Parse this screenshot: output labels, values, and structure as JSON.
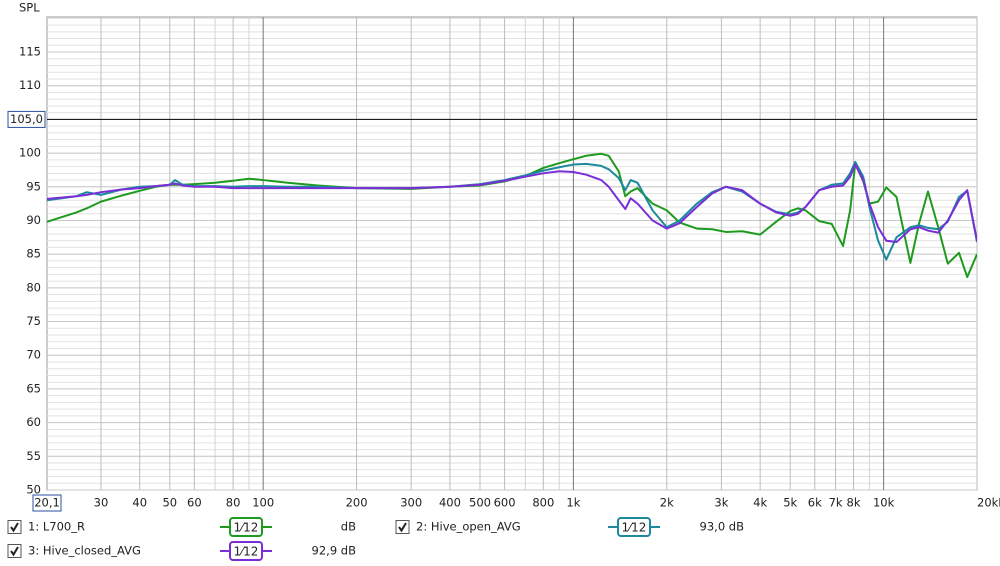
{
  "chart_data": {
    "type": "line",
    "y_label": "SPL",
    "x_scale": "log",
    "grid": true,
    "xlim": [
      20.1,
      20000
    ],
    "ylim": [
      50,
      120.2
    ],
    "x_cursor": {
      "value": 20.1,
      "label": "20,1"
    },
    "y_cursor": {
      "value": 105,
      "label": "105,0"
    },
    "xticks": [
      30,
      40,
      50,
      60,
      80,
      100,
      200,
      300,
      400,
      500,
      600,
      800,
      {
        "value": 1000,
        "label": "1k"
      },
      {
        "value": 2000,
        "label": "2k"
      },
      {
        "value": 3000,
        "label": "3k"
      },
      {
        "value": 4000,
        "label": "4k"
      },
      {
        "value": 5000,
        "label": "5k"
      },
      {
        "value": 6000,
        "label": "6k"
      },
      {
        "value": 7000,
        "label": "7k"
      },
      {
        "value": 8000,
        "label": "8k"
      },
      {
        "value": 10000,
        "label": "10k"
      },
      {
        "value": 20000,
        "label": "20kHz"
      }
    ],
    "yticks": [
      50,
      55,
      60,
      65,
      70,
      75,
      80,
      85,
      90,
      95,
      100,
      110,
      115
    ],
    "x": [
      20.1,
      25,
      27,
      30,
      35,
      40,
      45,
      50,
      52,
      55,
      60,
      70,
      80,
      90,
      100,
      120,
      150,
      200,
      300,
      400,
      500,
      600,
      700,
      800,
      900,
      1000,
      1100,
      1230,
      1300,
      1400,
      1470,
      1530,
      1610,
      1800,
      2000,
      2200,
      2500,
      2800,
      3100,
      3500,
      4000,
      4500,
      5000,
      5300,
      5600,
      6200,
      6800,
      7400,
      7800,
      8100,
      8600,
      9000,
      9600,
      10200,
      11000,
      12200,
      13000,
      13900,
      15000,
      16100,
      17500,
      18600,
      20000
    ],
    "series": [
      {
        "name": "1: L700_R",
        "color": "#1e9a1e",
        "checked": true,
        "smoothing": "1⁄12",
        "level_label": "dB",
        "values": [
          89.8,
          91.2,
          91.8,
          92.8,
          93.7,
          94.4,
          95.0,
          95.3,
          95.3,
          95.3,
          95.4,
          95.6,
          95.9,
          96.2,
          96.0,
          95.6,
          95.2,
          94.8,
          94.7,
          95.0,
          95.2,
          95.8,
          96.6,
          97.8,
          98.5,
          99.1,
          99.6,
          99.9,
          99.6,
          97.3,
          93.6,
          94.3,
          94.8,
          92.5,
          91.5,
          89.7,
          88.8,
          88.7,
          88.3,
          88.4,
          87.9,
          89.8,
          91.4,
          91.8,
          91.5,
          89.9,
          89.5,
          86.2,
          91.5,
          98.4,
          95.8,
          92.5,
          92.8,
          94.9,
          93.5,
          83.7,
          89.5,
          94.3,
          89.0,
          83.6,
          85.2,
          81.6,
          85.0
        ]
      },
      {
        "name": "2: Hive_open_AVG",
        "color": "#1c8a9c",
        "checked": true,
        "smoothing": "1⁄12",
        "level_label": "93,0 dB",
        "values": [
          93.0,
          93.6,
          94.2,
          93.8,
          94.6,
          95.0,
          95.1,
          95.3,
          96.0,
          95.3,
          95.1,
          95.1,
          95.0,
          95.1,
          95.1,
          95.0,
          95.0,
          94.8,
          94.8,
          95.0,
          95.4,
          96.0,
          96.7,
          97.4,
          97.9,
          98.3,
          98.4,
          98.1,
          97.6,
          96.3,
          94.5,
          96.0,
          95.6,
          91.5,
          89.0,
          90.0,
          92.5,
          94.2,
          95.0,
          94.3,
          92.5,
          91.3,
          90.9,
          91.2,
          92.0,
          94.5,
          95.3,
          95.5,
          97.0,
          98.7,
          96.5,
          92.0,
          87.0,
          84.2,
          87.5,
          89.0,
          89.3,
          88.9,
          88.7,
          89.8,
          93.5,
          94.4,
          86.8
        ]
      },
      {
        "name": "3: Hive_closed_AVG",
        "color": "#7a2ed8",
        "checked": true,
        "smoothing": "1⁄12",
        "level_label": "92,9 dB",
        "values": [
          93.2,
          93.6,
          93.8,
          94.2,
          94.6,
          94.8,
          95.1,
          95.3,
          95.5,
          95.2,
          95.0,
          95.0,
          94.8,
          94.8,
          94.8,
          94.8,
          94.8,
          94.8,
          94.8,
          95.0,
          95.3,
          95.9,
          96.5,
          97.0,
          97.3,
          97.2,
          96.8,
          96.0,
          95.0,
          93.0,
          91.7,
          93.3,
          92.5,
          90.0,
          88.8,
          89.6,
          92.0,
          94.0,
          95.0,
          94.5,
          92.5,
          91.2,
          90.7,
          91.0,
          92.0,
          94.5,
          95.0,
          95.2,
          96.5,
          98.3,
          96.0,
          92.5,
          89.0,
          87.0,
          86.8,
          88.7,
          89.0,
          88.5,
          88.2,
          90.0,
          93.0,
          94.5,
          87.0
        ]
      }
    ]
  }
}
